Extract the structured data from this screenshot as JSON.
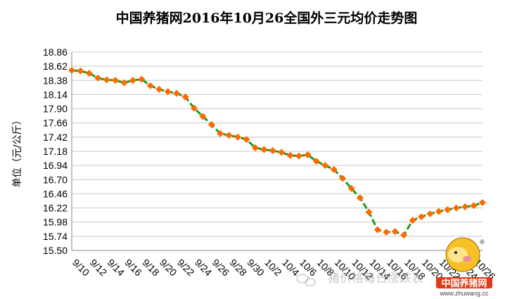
{
  "chart_data": {
    "type": "line",
    "title": "中国养猪网2016年10月26全国外三元均价走势图",
    "xlabel": "",
    "ylabel": "单位（元/公斤）",
    "ylim": [
      15.5,
      18.86
    ],
    "yticks": [
      "15.50",
      "15.74",
      "15.98",
      "16.22",
      "16.46",
      "16.70",
      "16.94",
      "17.18",
      "17.42",
      "17.66",
      "17.90",
      "18.14",
      "18.38",
      "18.62",
      "18.86"
    ],
    "xtick_labels": [
      "9/10",
      "9/12",
      "9/14",
      "9/16",
      "9/18",
      "9/20",
      "9/22",
      "9/24",
      "9/26",
      "9/28",
      "9/30",
      "10/2",
      "10/4",
      "10/6",
      "10/8",
      "10/10",
      "10/12",
      "10/14",
      "10/16",
      "10/18",
      "10/20",
      "10/22",
      "10/24",
      "10/26"
    ],
    "grid": true,
    "legend": "none",
    "series": [
      {
        "values": [
          18.55,
          18.54,
          18.5,
          18.42,
          18.39,
          18.38,
          18.34,
          18.38,
          18.4,
          18.29,
          18.23,
          18.19,
          18.16,
          18.1,
          17.91,
          17.77,
          17.63,
          17.48,
          17.45,
          17.42,
          17.38,
          17.24,
          17.21,
          17.19,
          17.16,
          17.11,
          17.1,
          17.12,
          17.01,
          16.94,
          16.87,
          16.72,
          16.55,
          16.39,
          16.15,
          15.85,
          15.81,
          15.82,
          15.76,
          16.01,
          16.07,
          16.12,
          16.16,
          16.19,
          16.22,
          16.24,
          16.26,
          16.31
        ],
        "line_color": "#1e9e1e",
        "marker_color": "#ff6a00",
        "marker": "diamond"
      }
    ]
  },
  "watermark": "猪价格每日涨跌表",
  "logo": {
    "text": "中国养猪网",
    "url": "www.zhuwang.cc",
    "registered": "®"
  }
}
